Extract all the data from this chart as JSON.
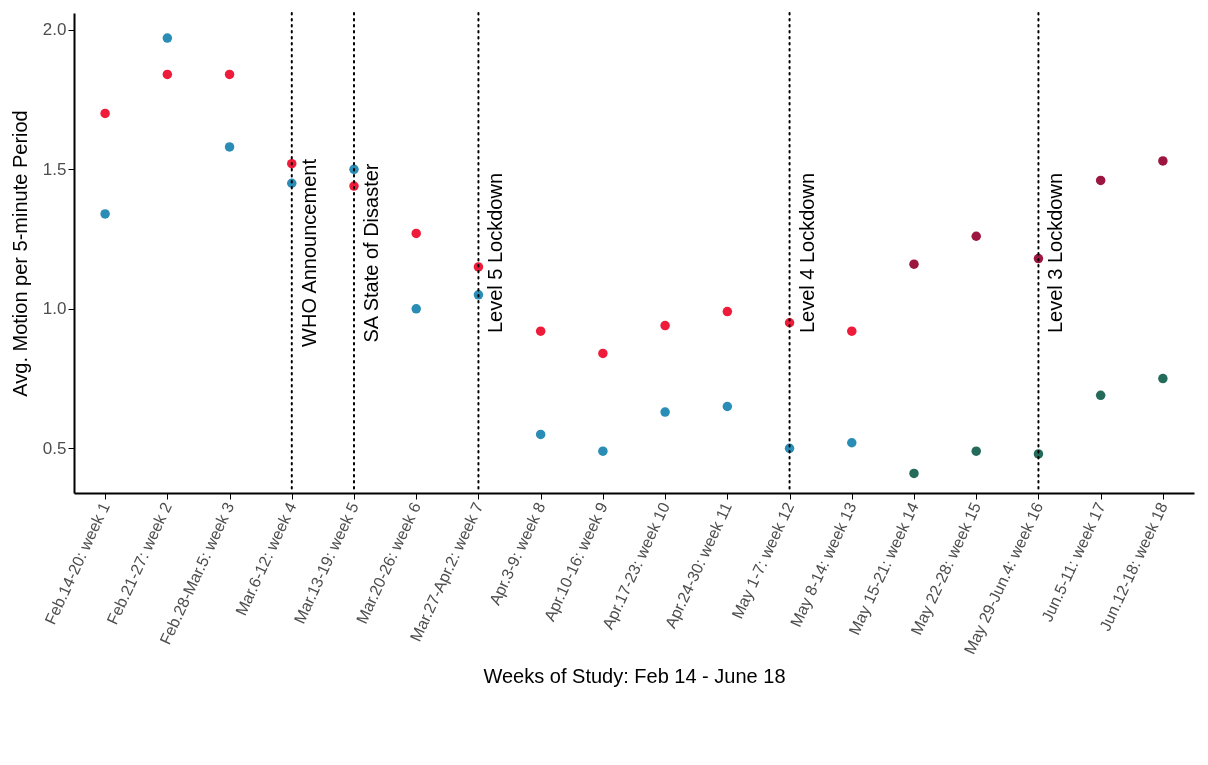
{
  "chart_data": {
    "type": "scatter",
    "xlabel": "Weeks of Study: Feb 14 - June 18",
    "ylabel": "Avg. Motion per 5-minute Period",
    "categories": [
      "Feb.14-20: week 1",
      "Feb.21-27: week 2",
      "Feb.28-Mar.5: week 3",
      "Mar.6-12: week 4",
      "Mar.13-19: week 5",
      "Mar.20-26: week 6",
      "Mar.27-Apr.2: week 7",
      "Apr.3-9: week 8",
      "Apr.10-16: week 9",
      "Apr.17-23: week 10",
      "Apr.24-30: week 11",
      "May 1-7: week 12",
      "May 8-14: week 13",
      "May 15-21: week 14",
      "May 22-28: week 15",
      "May 29-Jun.4: week 16",
      "Jun.5-11: week 17",
      "Jun.12-18: week 18"
    ],
    "series": [
      {
        "values": [
          1.7,
          1.84,
          1.84,
          1.52,
          1.44,
          1.27,
          1.15,
          0.92,
          0.84,
          0.94,
          0.99,
          0.95,
          0.92,
          1.16,
          1.26,
          1.18,
          1.46,
          1.53
        ],
        "colors": [
          "#ee1c3a",
          "#ee1c3a",
          "#ee1c3a",
          "#ee1c3a",
          "#ee1c3a",
          "#ee1c3a",
          "#ee1c3a",
          "#ee1c3a",
          "#ee1c3a",
          "#ee1c3a",
          "#ee1c3a",
          "#ee1c3a",
          "#ee1c3a",
          "#9c1640",
          "#9c1640",
          "#9c1640",
          "#9c1640",
          "#9c1640"
        ]
      },
      {
        "values": [
          1.34,
          1.97,
          1.58,
          1.45,
          1.5,
          1.0,
          1.05,
          0.55,
          0.49,
          0.63,
          0.65,
          0.5,
          0.52,
          0.41,
          0.49,
          0.48,
          0.69,
          0.75
        ],
        "colors": [
          "#2a8db5",
          "#2a8db5",
          "#2a8db5",
          "#2a8db5",
          "#2a8db5",
          "#2a8db5",
          "#2a8db5",
          "#2a8db5",
          "#2a8db5",
          "#2a8db5",
          "#2a8db5",
          "#2a8db5",
          "#2a8db5",
          "#256b5c",
          "#256b5c",
          "#256b5c",
          "#256b5c",
          "#256b5c"
        ]
      }
    ],
    "ylim": [
      0.34,
      2.06
    ],
    "yticks": [
      {
        "value": 0.5,
        "label": "0.5"
      },
      {
        "value": 1.0,
        "label": "1.0"
      },
      {
        "value": 1.5,
        "label": "1.5"
      },
      {
        "value": 2.0,
        "label": "2.0"
      }
    ],
    "marker": "circle",
    "ref_lines": [
      {
        "axis": "x",
        "value": "Mar.6-12: week 4",
        "label": "WHO Announcement",
        "line_style": "dotted"
      },
      {
        "axis": "x",
        "value": "Mar.13-19: week 5",
        "label": "SA State of Disaster",
        "line_style": "dotted"
      },
      {
        "axis": "x",
        "value": "Mar.27-Apr.2: week 7",
        "label": "Level 5 Lockdown",
        "line_style": "dotted"
      },
      {
        "axis": "x",
        "value": "May 1-7: week 12",
        "label": "Level 4 Lockdown",
        "line_style": "dotted"
      },
      {
        "axis": "x",
        "value": "May 29-Jun.4: week 16",
        "label": "Level 3 Lockdown",
        "line_style": "dotted"
      }
    ]
  }
}
